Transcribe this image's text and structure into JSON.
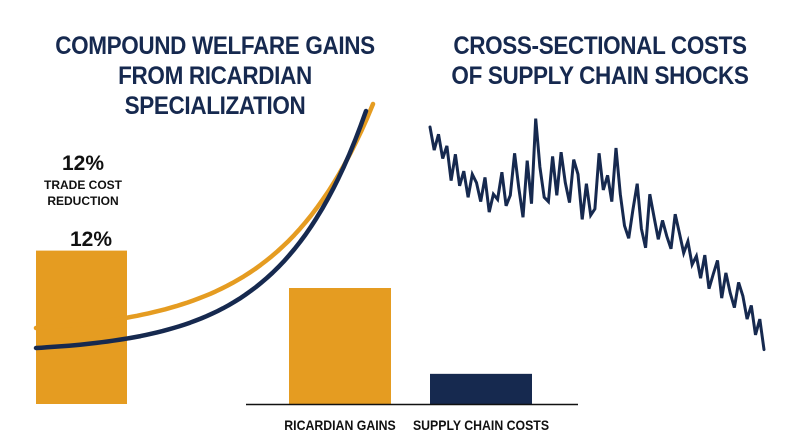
{
  "colors": {
    "gold": "#e59c21",
    "navy": "#16294f",
    "background": "#ffffff",
    "text": "#111111"
  },
  "left_panel": {
    "title_line1": "COMPOUND WELFARE GAINS",
    "title_line2": "FROM RICARDIAN SPECIALIZATION"
  },
  "right_panel": {
    "title_line1": "CROSS-SECTIONAL COSTS",
    "title_line2": "OF SUPPLY CHAIN SHOCKS"
  },
  "chart_data": [
    {
      "type": "line",
      "panel": "left",
      "title": "COMPOUND WELFARE GAINS FROM RICARDIAN SPECIALIZATION",
      "curve": "exponential",
      "series": [
        {
          "color": "#e59c21"
        },
        {
          "color": "#16294f"
        }
      ],
      "highlight_bar": {
        "value": 12,
        "value_label": "12%",
        "label_line1": "TRADE COST",
        "label_line2": "REDUCTION",
        "inner_label": "12%",
        "color": "#e59c21"
      }
    },
    {
      "type": "bar",
      "panel": "center",
      "categories": [
        "RICARDIAN GAINS",
        "SUPPLY CHAIN COSTS"
      ],
      "values": [
        100,
        26
      ],
      "colors": [
        "#e59c21",
        "#16294f"
      ]
    },
    {
      "type": "line",
      "panel": "right",
      "title": "CROSS-SECTIONAL COSTS OF SUPPLY CHAIN SHOCKS",
      "color": "#16294f",
      "x": [
        1,
        2,
        3,
        4,
        5,
        6,
        7,
        8,
        9,
        10,
        11,
        12,
        13,
        14,
        15,
        16,
        17,
        18,
        19,
        20,
        21,
        22,
        23,
        24,
        25,
        26,
        27,
        28,
        29,
        30,
        31,
        32,
        33,
        34,
        35,
        36,
        37,
        38,
        39,
        40,
        41,
        42,
        43,
        44,
        45,
        46,
        47,
        48,
        49,
        50,
        51,
        52,
        53,
        54,
        55,
        56,
        57,
        58,
        59,
        60,
        61,
        62,
        63,
        64,
        65,
        66,
        67,
        68,
        69,
        70,
        71,
        72,
        73,
        74,
        75,
        76,
        77,
        78,
        79,
        80
      ],
      "values": [
        100,
        78,
        93,
        70,
        82,
        49,
        74,
        44,
        58,
        33,
        55,
        47,
        29,
        52,
        19,
        36,
        31,
        57,
        25,
        35,
        75,
        42,
        14,
        68,
        27,
        108,
        62,
        33,
        29,
        72,
        35,
        76,
        47,
        28,
        69,
        55,
        12,
        46,
        16,
        22,
        75,
        40,
        54,
        29,
        80,
        36,
        6,
        -6,
        21,
        46,
        3,
        -15,
        36,
        14,
        -7,
        11,
        -4,
        -16,
        17,
        -1,
        -20,
        -9,
        -31,
        -23,
        -44,
        -22,
        -54,
        -40,
        -27,
        -63,
        -39,
        -58,
        -72,
        -48,
        -61,
        -83,
        -70,
        -98,
        -83,
        -112
      ]
    }
  ]
}
